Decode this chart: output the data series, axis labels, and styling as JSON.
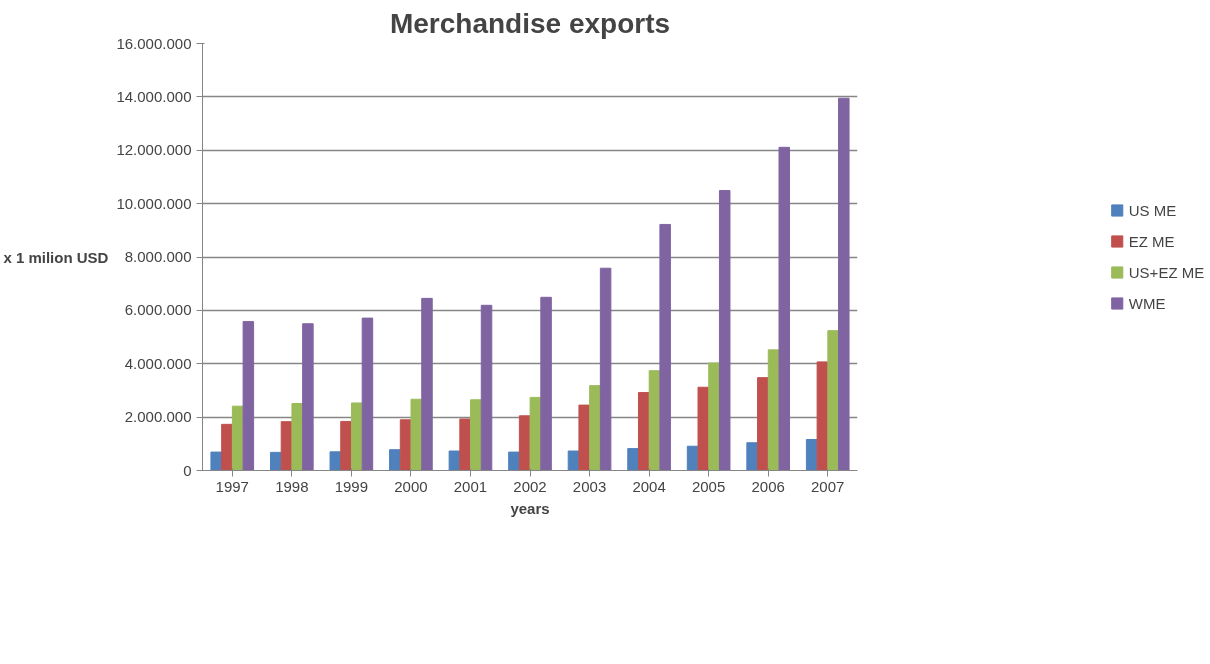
{
  "chart_data": {
    "type": "bar",
    "title": "Merchandise exports",
    "xlabel": "years",
    "ylabel": "x 1 milion USD",
    "categories": [
      "1997",
      "1998",
      "1999",
      "2000",
      "2001",
      "2002",
      "2003",
      "2004",
      "2005",
      "2006",
      "2007"
    ],
    "series": [
      {
        "name": "US ME",
        "color": "#4f81bd",
        "values": [
          690000,
          680000,
          700000,
          780000,
          730000,
          690000,
          730000,
          820000,
          910000,
          1040000,
          1160000
        ]
      },
      {
        "name": "EZ ME",
        "color": "#c0504d",
        "values": [
          1730000,
          1830000,
          1840000,
          1900000,
          1930000,
          2050000,
          2450000,
          2920000,
          3120000,
          3480000,
          4070000
        ]
      },
      {
        "name": "US+EZ ME",
        "color": "#9bbb59",
        "values": [
          2410000,
          2510000,
          2530000,
          2670000,
          2650000,
          2740000,
          3180000,
          3740000,
          4030000,
          4520000,
          5240000
        ]
      },
      {
        "name": "WME",
        "color": "#8064a2",
        "values": [
          5580000,
          5500000,
          5710000,
          6450000,
          6190000,
          6490000,
          7580000,
          9220000,
          10490000,
          12110000,
          13950000
        ]
      }
    ],
    "ylim": [
      0,
      16000000
    ],
    "yticks": [
      0,
      {
        "value": 2000000,
        "label": "2.000.000"
      },
      {
        "value": 4000000,
        "label": "4.000.000"
      },
      {
        "value": 6000000,
        "label": "6.000.000"
      },
      {
        "value": 8000000,
        "label": "8.000.000"
      },
      {
        "value": 10000000,
        "label": "10.000.000"
      },
      {
        "value": 12000000,
        "label": "12.000.000"
      },
      {
        "value": 14000000,
        "label": "14.000.000"
      },
      {
        "value": 16000000,
        "label": "16.000.000"
      }
    ],
    "grid": "y",
    "legend": "right"
  }
}
